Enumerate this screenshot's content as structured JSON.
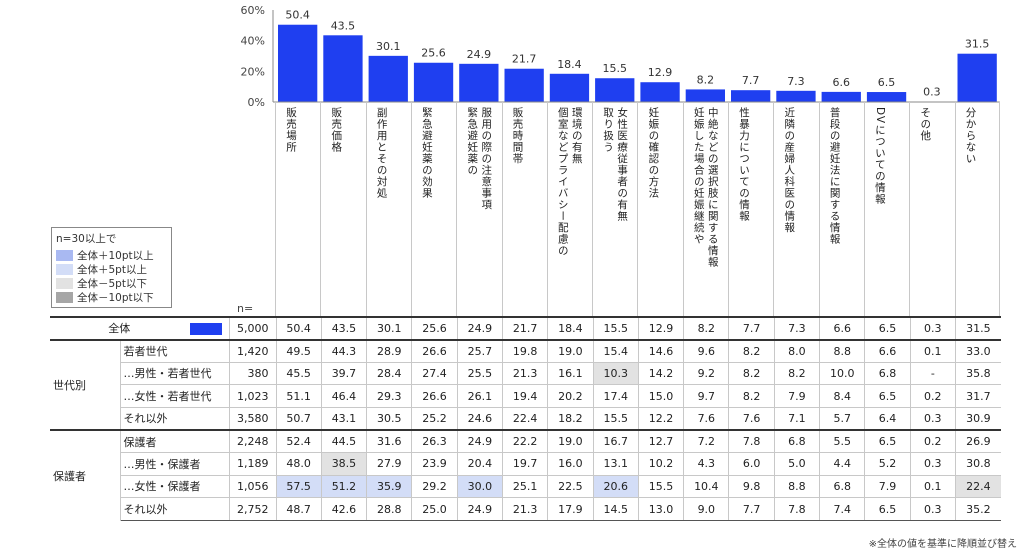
{
  "chart_data": {
    "type": "bar",
    "yticks": [
      "60%",
      "40%",
      "20%",
      "0%"
    ],
    "ylim": [
      0,
      60
    ],
    "bar_color": "#1f3ff0",
    "categories": [
      "販\n売\n場\n所",
      "販\n売\n価\n格",
      "副\n作\n用\nと\nそ\nの\n対\n処",
      "緊\n急\n避\n妊\n薬\nの\n効\n果",
      "服緊\n用急\nの避\n際妊\nの薬\n注の\n意\n事\n項",
      "販\n売\n時\n間\n帯",
      "環個\n境室\nのな\n有ど\n無プ\n　ラ\n　イ\n　バ\n　シ\n　ー\n　配\n　慮\n　の",
      "女取\n性り\n医扱\n療う\n従\n事\n者\nの\n有\n無",
      "妊\n娠\nの\n確\n認\nの\n方\n法",
      "中妊\n絶娠\nなし\nどた\nの場\n選合\n択の\n肢妊\nに娠\n関継\nす続\nるや\n情\n報",
      "性\n暴\n力\nに\nつ\nい\nて\nの\n情\n報",
      "近\n隣\nの\n産\n婦\n人\n科\n医\nの\n情\n報",
      "普\n段\nの\n避\n妊\n法\nに\n関\nす\nる\n情\n報",
      "D\nV\nに\nつ\nい\nて\nの\n情\n報",
      "そ\nの\n他",
      "分\nか\nら\nな\nい"
    ],
    "values": [
      50.4,
      43.5,
      30.1,
      25.6,
      24.9,
      21.7,
      18.4,
      15.5,
      12.9,
      8.2,
      7.7,
      7.3,
      6.6,
      6.5,
      0.3,
      31.5
    ]
  },
  "n_label": "n=",
  "legend": {
    "title": "n=30以上で",
    "items": [
      {
        "label": "全体＋10pt以上",
        "color": "#a9b9f2"
      },
      {
        "label": "全体＋5pt以上",
        "color": "#d3ddf7"
      },
      {
        "label": "全体－5pt以下",
        "color": "#e2e2e2"
      },
      {
        "label": "全体－10pt以下",
        "color": "#a6a6a6"
      }
    ]
  },
  "table": {
    "total": {
      "label": "全体",
      "n": "5,000",
      "values": [
        "50.4",
        "43.5",
        "30.1",
        "25.6",
        "24.9",
        "21.7",
        "18.4",
        "15.5",
        "12.9",
        "8.2",
        "7.7",
        "7.3",
        "6.6",
        "6.5",
        "0.3",
        "31.5"
      ]
    },
    "groups": [
      {
        "name": "世代別",
        "rows": [
          {
            "label": "若者世代",
            "n": "1,420",
            "values": [
              "49.5",
              "44.3",
              "28.9",
              "26.6",
              "25.7",
              "19.8",
              "19.0",
              "15.4",
              "14.6",
              "9.6",
              "8.2",
              "8.0",
              "8.8",
              "6.6",
              "0.1",
              "33.0"
            ],
            "hl": [
              null,
              null,
              null,
              null,
              null,
              null,
              null,
              null,
              null,
              null,
              null,
              null,
              null,
              null,
              null,
              null
            ]
          },
          {
            "label": "…男性・若者世代",
            "n": "380",
            "values": [
              "45.5",
              "39.7",
              "28.4",
              "27.4",
              "25.5",
              "21.3",
              "16.1",
              "10.3",
              "14.2",
              "9.2",
              "8.2",
              "8.2",
              "10.0",
              "6.8",
              "-",
              "35.8"
            ],
            "hl": [
              null,
              null,
              null,
              null,
              null,
              null,
              null,
              "m5",
              null,
              null,
              null,
              null,
              null,
              null,
              null,
              null
            ]
          },
          {
            "label": "…女性・若者世代",
            "n": "1,023",
            "values": [
              "51.1",
              "46.4",
              "29.3",
              "26.6",
              "26.1",
              "19.4",
              "20.2",
              "17.4",
              "15.0",
              "9.7",
              "8.2",
              "7.9",
              "8.4",
              "6.5",
              "0.2",
              "31.7"
            ],
            "hl": [
              null,
              null,
              null,
              null,
              null,
              null,
              null,
              null,
              null,
              null,
              null,
              null,
              null,
              null,
              null,
              null
            ]
          },
          {
            "label": "それ以外",
            "n": "3,580",
            "values": [
              "50.7",
              "43.1",
              "30.5",
              "25.2",
              "24.6",
              "22.4",
              "18.2",
              "15.5",
              "12.2",
              "7.6",
              "7.6",
              "7.1",
              "5.7",
              "6.4",
              "0.3",
              "30.9"
            ],
            "hl": [
              null,
              null,
              null,
              null,
              null,
              null,
              null,
              null,
              null,
              null,
              null,
              null,
              null,
              null,
              null,
              null
            ]
          }
        ]
      },
      {
        "name": "保護者",
        "rows": [
          {
            "label": "保護者",
            "n": "2,248",
            "values": [
              "52.4",
              "44.5",
              "31.6",
              "26.3",
              "24.9",
              "22.2",
              "19.0",
              "16.7",
              "12.7",
              "7.2",
              "7.8",
              "6.8",
              "5.5",
              "6.5",
              "0.2",
              "26.9"
            ],
            "hl": [
              null,
              null,
              null,
              null,
              null,
              null,
              null,
              null,
              null,
              null,
              null,
              null,
              null,
              null,
              null,
              null
            ]
          },
          {
            "label": "…男性・保護者",
            "n": "1,189",
            "values": [
              "48.0",
              "38.5",
              "27.9",
              "23.9",
              "20.4",
              "19.7",
              "16.0",
              "13.1",
              "10.2",
              "4.3",
              "6.0",
              "5.0",
              "4.4",
              "5.2",
              "0.3",
              "30.8"
            ],
            "hl": [
              null,
              "m5",
              null,
              null,
              null,
              null,
              null,
              null,
              null,
              null,
              null,
              null,
              null,
              null,
              null,
              null
            ]
          },
          {
            "label": "…女性・保護者",
            "n": "1,056",
            "values": [
              "57.5",
              "51.2",
              "35.9",
              "29.2",
              "30.0",
              "25.1",
              "22.5",
              "20.6",
              "15.5",
              "10.4",
              "9.8",
              "8.8",
              "6.8",
              "7.9",
              "0.1",
              "22.4"
            ],
            "hl": [
              "p5",
              "p5",
              "p5",
              null,
              "p5",
              null,
              null,
              "p5",
              null,
              null,
              null,
              null,
              null,
              null,
              null,
              "m5"
            ]
          },
          {
            "label": "それ以外",
            "n": "2,752",
            "values": [
              "48.7",
              "42.6",
              "28.8",
              "25.0",
              "24.9",
              "21.3",
              "17.9",
              "14.5",
              "13.0",
              "9.0",
              "7.7",
              "7.8",
              "7.4",
              "6.5",
              "0.3",
              "35.2"
            ],
            "hl": [
              null,
              null,
              null,
              null,
              null,
              null,
              null,
              null,
              null,
              null,
              null,
              null,
              null,
              null,
              null,
              null
            ]
          }
        ]
      }
    ]
  },
  "note": "※全体の値を基準に降順並び替え"
}
